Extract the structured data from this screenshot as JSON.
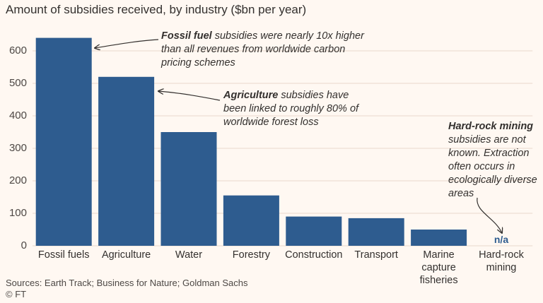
{
  "chart_data": {
    "type": "bar",
    "title": "Amount of subsidies received, by industry ($bn per year)",
    "categories": [
      "Fossil fuels",
      "Agriculture",
      "Water",
      "Forestry",
      "Construction",
      "Transport",
      "Marine capture fisheries",
      "Hard-rock mining"
    ],
    "values": [
      640,
      520,
      350,
      155,
      90,
      85,
      50,
      null
    ],
    "value_labels": [
      null,
      null,
      null,
      null,
      null,
      null,
      null,
      "n/a"
    ],
    "color": "#2e5c8f",
    "ylim": [
      0,
      650
    ],
    "yticks": [
      0,
      100,
      200,
      300,
      400,
      500,
      600
    ],
    "grid": true,
    "annotations": [
      {
        "bold": "Fossil fuel",
        "text": " subsidies were nearly 10x higher than all revenues from worldwide carbon pricing schemes"
      },
      {
        "bold": "Agriculture",
        "text": " subsidies have been linked to roughly 80% of worldwide forest loss"
      },
      {
        "bold": "Hard-rock mining",
        "text": " subsidies are not known. Extraction often occurs in ecologically diverse areas"
      }
    ],
    "source": "Sources: Earth Track; Business for Nature; Goldman Sachs",
    "credit": "© FT"
  }
}
